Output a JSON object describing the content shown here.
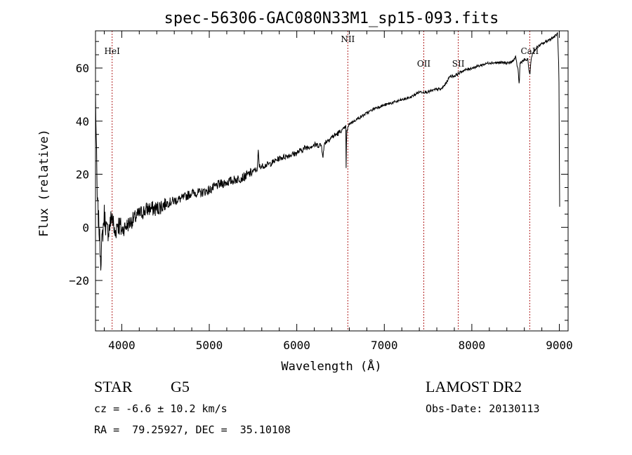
{
  "chart_data": {
    "type": "line",
    "title": "spec-56306-GAC080N33M1_sp15-093.fits",
    "xlabel": "Wavelength (Å)",
    "ylabel": "Flux (relative)",
    "xlim": [
      3700,
      9100
    ],
    "ylim": [
      -39,
      74
    ],
    "xticks": [
      4000,
      5000,
      6000,
      7000,
      8000,
      9000
    ],
    "yticks": [
      -20,
      0,
      20,
      40,
      60
    ],
    "grid": false,
    "line_color": "#000000",
    "marker_color": "#b22222",
    "series": [
      {
        "x": [
          3700,
          3710,
          3720,
          3740,
          3760,
          3780,
          3800,
          3830,
          3860,
          3890,
          3920,
          3950,
          4000,
          4100,
          4200,
          4300,
          4400,
          4500,
          4600,
          4700,
          4800,
          4900,
          5000,
          5100,
          5200,
          5300,
          5400,
          5500,
          5550,
          5560,
          5570,
          5600,
          5700,
          5800,
          5900,
          6000,
          6100,
          6200,
          6280,
          6300,
          6320,
          6400,
          6500,
          6560,
          6563,
          6570,
          6600,
          6700,
          6800,
          6900,
          7000,
          7100,
          7200,
          7300,
          7400,
          7500,
          7600,
          7650,
          7700,
          7750,
          7800,
          7850,
          7900,
          8000,
          8100,
          8200,
          8300,
          8400,
          8450,
          8500,
          8530,
          8542,
          8550,
          8600,
          8640,
          8662,
          8680,
          8700,
          8750,
          8800,
          8850,
          8900,
          8950,
          8980,
          8995,
          9000,
          9005
        ],
        "values": [
          50,
          30,
          10,
          0,
          -12,
          -3,
          5,
          -2,
          0,
          5,
          -3,
          2,
          -1,
          2,
          5,
          7,
          7,
          9,
          10,
          11,
          13,
          13,
          14,
          16,
          17,
          18,
          19,
          21,
          22,
          29,
          23,
          23,
          24,
          26,
          27,
          28,
          30,
          31,
          31,
          27,
          32,
          34,
          36,
          38,
          20,
          36,
          39,
          41,
          43,
          45,
          46,
          47,
          48,
          49,
          51,
          51,
          52,
          52,
          54,
          57,
          57,
          58,
          59,
          60,
          61,
          62,
          62,
          62,
          62,
          64,
          59,
          53,
          62,
          63,
          63,
          57,
          64,
          66,
          68,
          69,
          70,
          71,
          72,
          73,
          60,
          30,
          2
        ]
      }
    ],
    "line_markers": [
      {
        "label": "HeI",
        "x": 3890
      },
      {
        "label": "NII",
        "x": 6583
      },
      {
        "label": "OII",
        "x": 7451
      },
      {
        "label": "SII",
        "x": 7845
      },
      {
        "label": "CaII",
        "x": 8662
      }
    ]
  },
  "info": {
    "object_class": "STAR",
    "subclass": "G5",
    "survey": "LAMOST DR2",
    "cz": "cz = -6.6 ± 10.2 km/s",
    "obs_date": "Obs-Date: 20130113",
    "coords": "RA =  79.25927, DEC =  35.10108"
  }
}
